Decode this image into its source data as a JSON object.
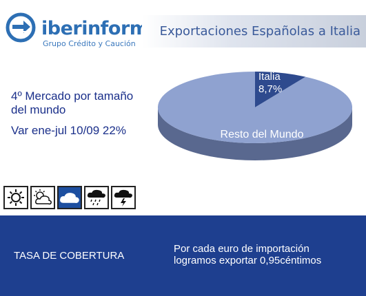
{
  "brand": {
    "name": "iberinform",
    "tagline": "Grupo Crédito y Caución",
    "color": "#2d6fb4"
  },
  "header": {
    "title": "Exportaciones Españolas a Italia"
  },
  "info": {
    "line1": "4º Mercado por tamaño",
    "line2": "del mundo",
    "line3": "Var ene-jul 10/09   22%"
  },
  "weather": {
    "icons": [
      "sun-icon",
      "partly-cloudy-icon",
      "cloud-icon",
      "rain-storm-icon",
      "thunderstorm-icon"
    ],
    "active": "cloud-icon"
  },
  "chart_data": {
    "type": "pie",
    "slices": [
      {
        "label": "Italia",
        "value_label": "8,7%",
        "value": 8.7,
        "color": "#2e4a8e"
      },
      {
        "label": "Resto del Mundo",
        "value_label": "",
        "value": 91.3,
        "color": "#8fa2d0"
      }
    ]
  },
  "footer": {
    "left_label": "TASA DE COBERTURA",
    "right_line1": "Por cada euro de importación",
    "right_line2": "logramos exportar 0,95céntimos",
    "background": "#1e3f8f"
  }
}
